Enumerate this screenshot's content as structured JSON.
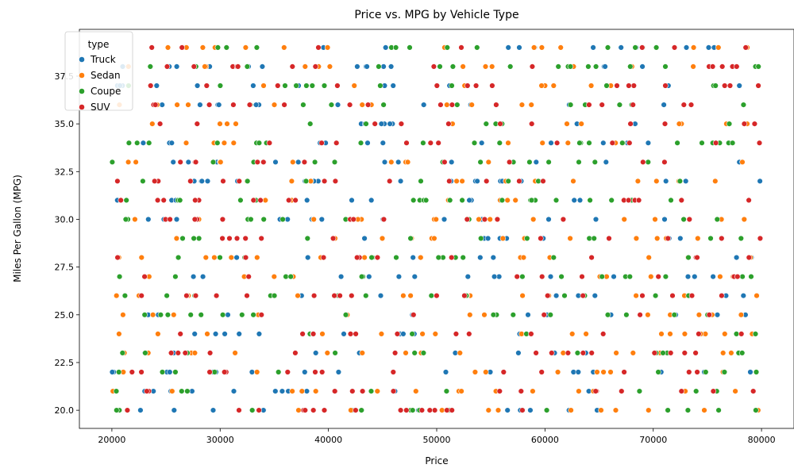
{
  "chart_data": {
    "type": "scatter",
    "title": "Price vs. MPG by Vehicle Type",
    "xlabel": "Price",
    "ylabel": "Miles Per Gallon (MPG)",
    "xlim": [
      17000,
      83000
    ],
    "ylim": [
      19.05,
      39.95
    ],
    "xticks": [
      20000,
      30000,
      40000,
      50000,
      60000,
      70000,
      80000
    ],
    "yticks": [
      20.0,
      22.5,
      25.0,
      27.5,
      30.0,
      32.5,
      35.0,
      37.5
    ],
    "ytick_labels": [
      "20.0",
      "22.5",
      "25.0",
      "27.5",
      "30.0",
      "32.5",
      "35.0",
      "37.5"
    ],
    "grid": false,
    "legend": {
      "title": "type",
      "placement": "top-left"
    },
    "series": [
      {
        "name": "Truck",
        "color": "#1f77b4",
        "count": 250,
        "seed": 11
      },
      {
        "name": "Sedan",
        "color": "#ff7f0e",
        "count": 250,
        "seed": 23
      },
      {
        "name": "Coupe",
        "color": "#2ca02c",
        "count": 250,
        "seed": 37
      },
      {
        "name": "SUV",
        "color": "#d62728",
        "count": 250,
        "seed": 53
      }
    ],
    "note_values": "points: price uniform 20000-80000, mpg integer 20-39; representative sample"
  }
}
